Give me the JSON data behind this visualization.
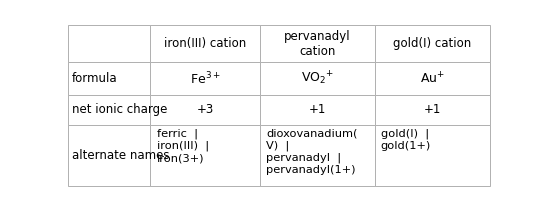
{
  "col_headers": [
    "",
    "iron(III) cation",
    "pervanadyl\ncation",
    "gold(I) cation"
  ],
  "row_labels": [
    "formula",
    "net ionic charge",
    "alternate names"
  ],
  "formula_cells": [
    "Fe$^{3+}$",
    "VO$_2$$^{+}$",
    "Au$^{+}$"
  ],
  "charge_cells": [
    "+3",
    "+1",
    "+1"
  ],
  "altname_cells": [
    "ferric  |\niron(III)  |\niron(3+)",
    "dioxovanadium(\nV)  |\npervanadyl  |\npervanadyl(1+)",
    "gold(I)  |\ngold(1+)"
  ],
  "bg_color": "#ffffff",
  "line_color": "#b0b0b0",
  "text_color": "#000000",
  "font_size": 8.5
}
